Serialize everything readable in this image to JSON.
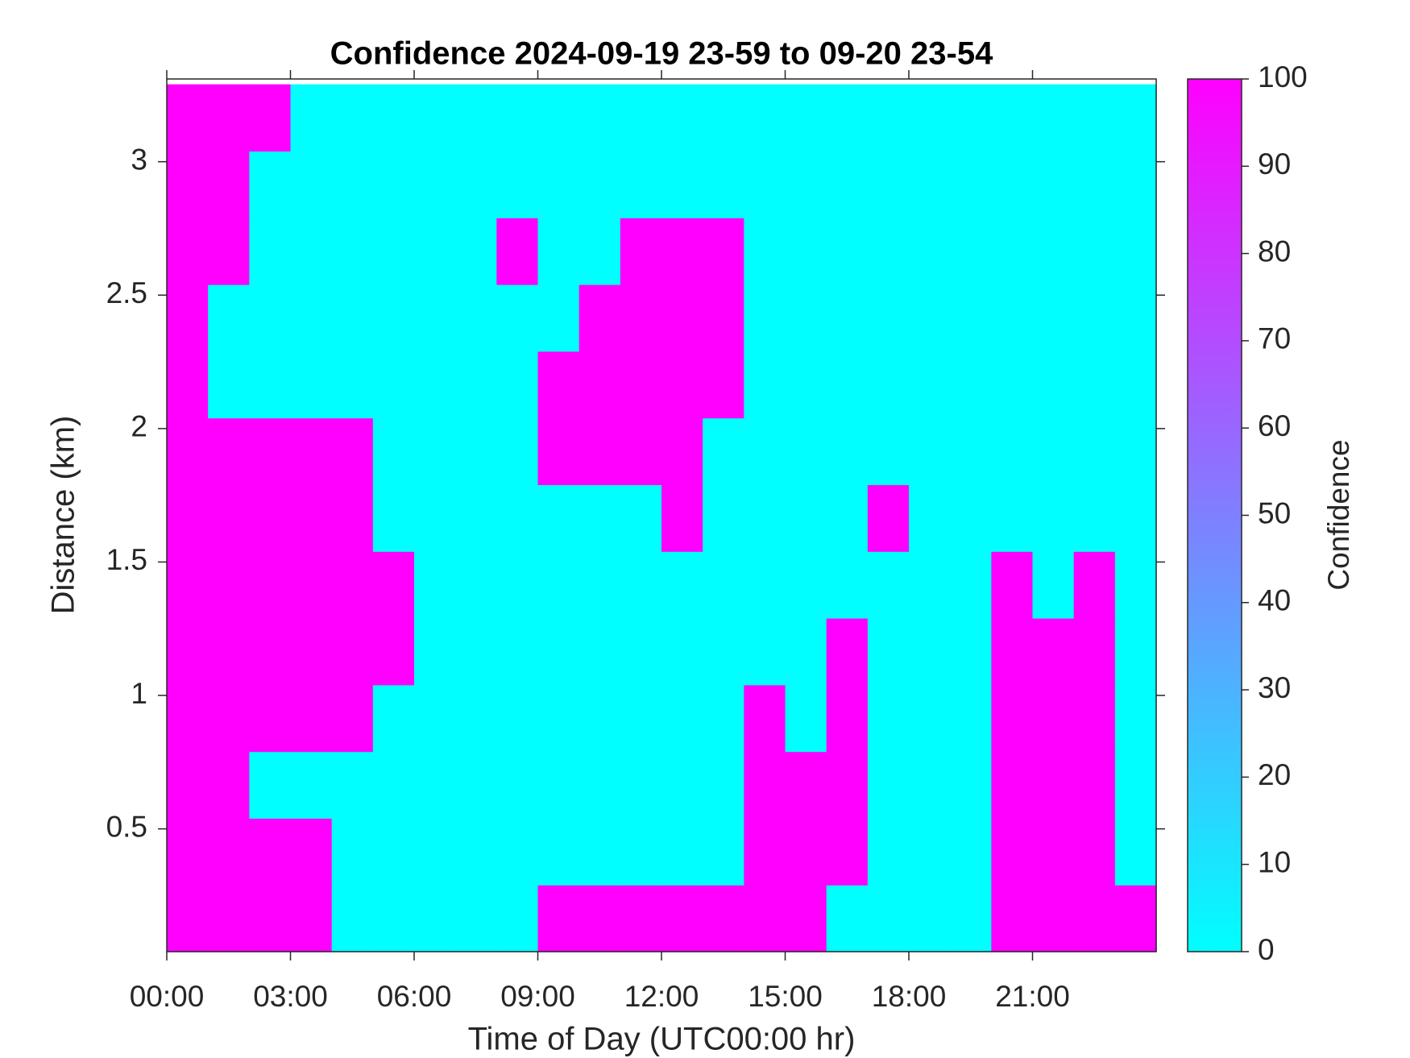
{
  "chart_data": {
    "type": "heatmap",
    "title": "Confidence 2024-09-19 23-59 to 09-20 23-54",
    "x_label": "Time of Day (UTC00:00 hr)",
    "y_label": "Distance (km)",
    "colorbar_label": "Confidence",
    "colormap": "cool",
    "x": [
      0.5,
      1.5,
      2.5,
      3.5,
      4.5,
      5.5,
      6.5,
      7.5,
      8.5,
      9.5,
      10.5,
      11.5,
      12.5,
      13.5,
      14.5,
      15.5,
      16.5,
      17.5,
      18.5,
      19.5,
      20.5,
      21.5,
      22.5,
      23.5
    ],
    "y": [
      0.165,
      0.415,
      0.665,
      0.915,
      1.165,
      1.415,
      1.665,
      1.915,
      2.165,
      2.415,
      2.665,
      2.915,
      3.165
    ],
    "z": [
      [
        100,
        100,
        100,
        100,
        0,
        0,
        0,
        0,
        0,
        100,
        100,
        100,
        100,
        100,
        100,
        100,
        0,
        0,
        0,
        0,
        100,
        100,
        100,
        100
      ],
      [
        100,
        100,
        100,
        100,
        0,
        0,
        0,
        0,
        0,
        0,
        0,
        0,
        0,
        0,
        100,
        100,
        100,
        0,
        0,
        0,
        100,
        100,
        100,
        0
      ],
      [
        100,
        100,
        0,
        0,
        0,
        0,
        0,
        0,
        0,
        0,
        0,
        0,
        0,
        0,
        100,
        100,
        100,
        0,
        0,
        0,
        100,
        100,
        100,
        0
      ],
      [
        100,
        100,
        100,
        100,
        100,
        0,
        0,
        0,
        0,
        0,
        0,
        0,
        0,
        0,
        100,
        0,
        100,
        0,
        0,
        0,
        100,
        100,
        100,
        0
      ],
      [
        100,
        100,
        100,
        100,
        100,
        100,
        0,
        0,
        0,
        0,
        0,
        0,
        0,
        0,
        0,
        0,
        100,
        0,
        0,
        0,
        100,
        100,
        100,
        0
      ],
      [
        100,
        100,
        100,
        100,
        100,
        100,
        0,
        0,
        0,
        0,
        0,
        0,
        0,
        0,
        0,
        0,
        0,
        0,
        0,
        0,
        100,
        0,
        100,
        0
      ],
      [
        100,
        100,
        100,
        100,
        100,
        0,
        0,
        0,
        0,
        0,
        0,
        0,
        100,
        0,
        0,
        0,
        0,
        100,
        0,
        0,
        0,
        0,
        0,
        0
      ],
      [
        100,
        100,
        100,
        100,
        100,
        0,
        0,
        0,
        0,
        100,
        100,
        100,
        100,
        0,
        0,
        0,
        0,
        0,
        0,
        0,
        0,
        0,
        0,
        0
      ],
      [
        100,
        0,
        0,
        0,
        0,
        0,
        0,
        0,
        0,
        100,
        100,
        100,
        100,
        100,
        0,
        0,
        0,
        0,
        0,
        0,
        0,
        0,
        0,
        0
      ],
      [
        100,
        0,
        0,
        0,
        0,
        0,
        0,
        0,
        0,
        0,
        100,
        100,
        100,
        100,
        0,
        0,
        0,
        0,
        0,
        0,
        0,
        0,
        0,
        0
      ],
      [
        100,
        100,
        0,
        0,
        0,
        0,
        0,
        0,
        100,
        0,
        0,
        100,
        100,
        100,
        0,
        0,
        0,
        0,
        0,
        0,
        0,
        0,
        0,
        0
      ],
      [
        100,
        100,
        0,
        0,
        0,
        0,
        0,
        0,
        0,
        0,
        0,
        0,
        0,
        0,
        0,
        0,
        0,
        0,
        0,
        0,
        0,
        0,
        0,
        0
      ],
      [
        100,
        100,
        100,
        0,
        0,
        0,
        0,
        0,
        0,
        0,
        0,
        0,
        0,
        0,
        0,
        0,
        0,
        0,
        0,
        0,
        0,
        0,
        0,
        0
      ]
    ],
    "xlim": [
      0,
      24
    ],
    "ylim": [
      0.04,
      3.31
    ],
    "xticks": [
      {
        "value": 0,
        "label": "00:00"
      },
      {
        "value": 3,
        "label": "03:00"
      },
      {
        "value": 6,
        "label": "06:00"
      },
      {
        "value": 9,
        "label": "09:00"
      },
      {
        "value": 12,
        "label": "12:00"
      },
      {
        "value": 15,
        "label": "15:00"
      },
      {
        "value": 18,
        "label": "18:00"
      },
      {
        "value": 21,
        "label": "21:00"
      }
    ],
    "yticks": [
      0.5,
      1,
      1.5,
      2,
      2.5,
      3
    ],
    "clim": [
      0,
      100
    ],
    "cticks": [
      0,
      10,
      20,
      30,
      40,
      50,
      60,
      70,
      80,
      90,
      100
    ]
  }
}
